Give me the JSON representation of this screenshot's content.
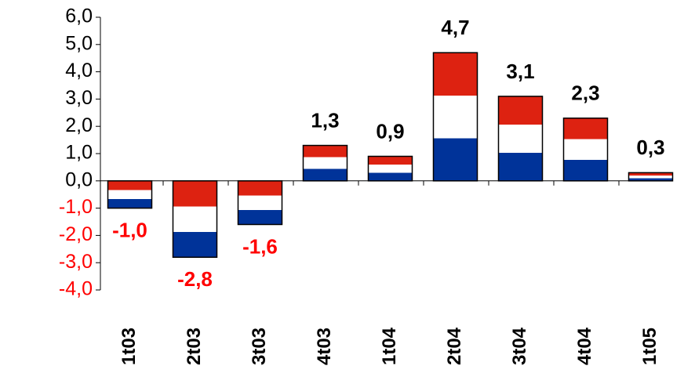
{
  "chart_data": {
    "type": "bar",
    "categories": [
      "1t03",
      "2t03",
      "3t03",
      "4t03",
      "1t04",
      "2t04",
      "3t04",
      "4t04",
      "1t05"
    ],
    "values": [
      -1.0,
      -2.8,
      -1.6,
      1.3,
      0.9,
      4.7,
      3.1,
      2.3,
      0.3
    ],
    "value_labels": [
      "-1,0",
      "-2,8",
      "-1,6",
      "1,3",
      "0,9",
      "4,7",
      "3,1",
      "2,3",
      "0,3"
    ],
    "stripe_colors": [
      "#dd2211",
      "#ffffff",
      "#003399"
    ],
    "positive_color": "#000000",
    "negative_color": "#ff0000",
    "ylim": [
      -4,
      6
    ],
    "yticks": [
      {
        "value": -4,
        "label": "-4,0"
      },
      {
        "value": -3,
        "label": "-3,0"
      },
      {
        "value": -2,
        "label": "-2,0"
      },
      {
        "value": -1,
        "label": "-1,0"
      },
      {
        "value": 0,
        "label": "0,0"
      },
      {
        "value": 1,
        "label": "1,0"
      },
      {
        "value": 2,
        "label": "2,0"
      },
      {
        "value": 3,
        "label": "3,0"
      },
      {
        "value": 4,
        "label": "4,0"
      },
      {
        "value": 5,
        "label": "5,0"
      },
      {
        "value": 6,
        "label": "6,0"
      }
    ],
    "grid": false
  }
}
